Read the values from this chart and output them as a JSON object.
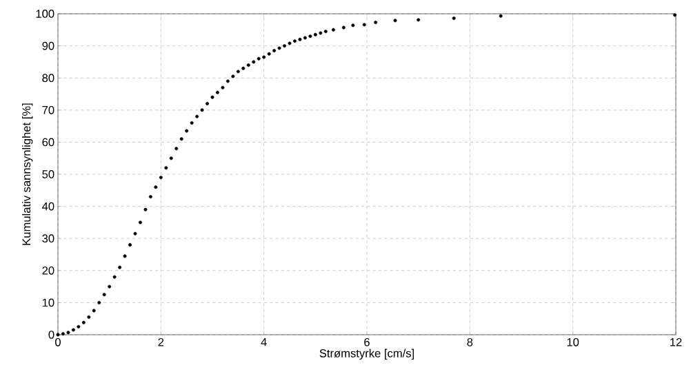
{
  "chart_data": {
    "type": "scatter",
    "xlabel": "Strømstyrke [cm/s]",
    "ylabel": "Kumulativ sannsynlighet [%]",
    "x": [
      0,
      0.1,
      0.2,
      0.3,
      0.4,
      0.5,
      0.6,
      0.7,
      0.8,
      0.9,
      1.0,
      1.1,
      1.2,
      1.3,
      1.4,
      1.5,
      1.6,
      1.7,
      1.8,
      1.9,
      2.0,
      2.1,
      2.2,
      2.3,
      2.4,
      2.5,
      2.6,
      2.7,
      2.8,
      2.9,
      3.0,
      3.1,
      3.2,
      3.3,
      3.4,
      3.5,
      3.6,
      3.7,
      3.8,
      3.9,
      4.0,
      4.1,
      4.2,
      4.3,
      4.4,
      4.5,
      4.6,
      4.7,
      4.8,
      4.9,
      5.0,
      5.1,
      5.2,
      5.35,
      5.55,
      5.73,
      5.95,
      6.17,
      6.55,
      7.0,
      7.69,
      8.6,
      11.98
    ],
    "values": [
      0,
      0.3,
      0.7,
      1.5,
      2.5,
      3.8,
      5.5,
      7.5,
      10,
      12.5,
      15,
      18,
      21,
      24.5,
      28,
      31.5,
      35,
      39,
      43,
      46,
      49,
      52,
      55,
      58,
      61,
      63.5,
      66,
      68,
      70,
      72,
      74,
      75.5,
      77,
      79,
      80.5,
      82,
      83,
      84,
      85,
      86,
      86.5,
      87.5,
      88.5,
      89.3,
      90,
      90.8,
      91.5,
      92,
      92.5,
      93,
      93.5,
      94,
      94.5,
      95,
      95.7,
      96.4,
      96.6,
      97.3,
      97.9,
      98.1,
      98.6,
      99.3,
      99.6
    ],
    "color": "#000000",
    "marker": "circle",
    "xlim": [
      0,
      12
    ],
    "ylim": [
      0,
      100
    ],
    "xticks": [
      0,
      2,
      4,
      6,
      8,
      10,
      12
    ],
    "yticks": [
      0,
      10,
      20,
      30,
      40,
      50,
      60,
      70,
      80,
      90,
      100
    ],
    "grid": true
  }
}
